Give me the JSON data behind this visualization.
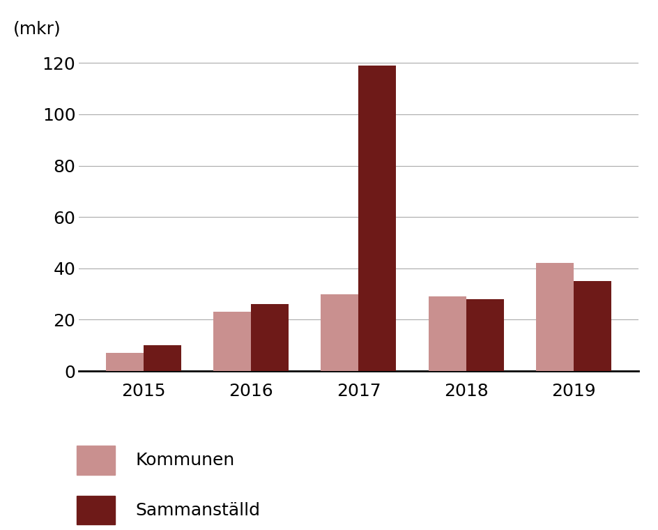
{
  "years": [
    "2015",
    "2016",
    "2017",
    "2018",
    "2019"
  ],
  "kommunen": [
    7,
    23,
    30,
    29,
    42
  ],
  "sammanstalld": [
    10,
    26,
    119,
    28,
    35
  ],
  "kommunen_color": "#c9908f",
  "sammanstalld_color": "#6e1a18",
  "ylabel": "(mkr)",
  "yticks": [
    0,
    20,
    40,
    60,
    80,
    100,
    120
  ],
  "ylim": [
    0,
    128
  ],
  "legend_labels": [
    "Kommunen",
    "Sammanställd"
  ],
  "bar_width": 0.35,
  "background_color": "#ffffff",
  "grid_color": "#aaaaaa",
  "tick_fontsize": 18,
  "legend_fontsize": 18
}
